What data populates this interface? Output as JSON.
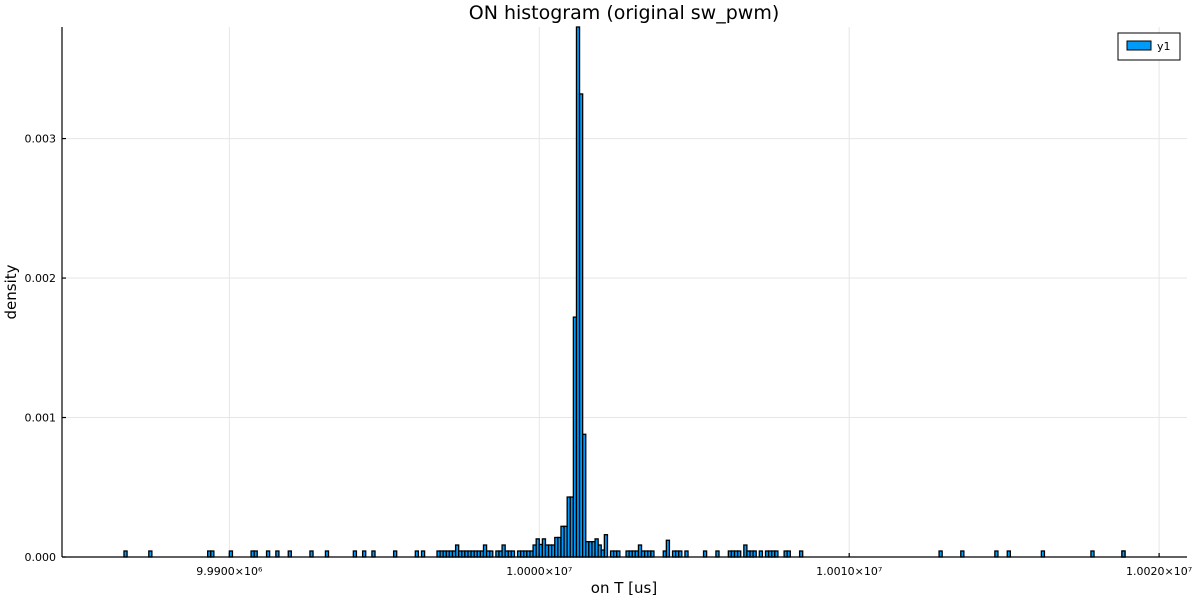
{
  "chart_data": {
    "type": "bar",
    "title": "ON histogram (original sw_pwm)",
    "xlabel": "on T [us]",
    "ylabel": "density",
    "xlim": [
      9984600,
      10020900
    ],
    "ylim": [
      0,
      0.0038
    ],
    "x_ticks": [
      {
        "value": 9990000,
        "label": "9.9900×10⁶"
      },
      {
        "value": 10000000,
        "label": "1.0000×10⁷"
      },
      {
        "value": 10010000,
        "label": "1.0010×10⁷"
      },
      {
        "value": 10020000,
        "label": "1.0020×10⁷"
      }
    ],
    "y_ticks": [
      {
        "value": 0,
        "label": "0.000"
      },
      {
        "value": 0.001,
        "label": "0.001"
      },
      {
        "value": 0.002,
        "label": "0.002"
      },
      {
        "value": 0.003,
        "label": "0.003"
      }
    ],
    "grid": true,
    "legend_position": "top-right",
    "bin_width": 100,
    "series": [
      {
        "name": "y1",
        "color": "#009af9",
        "bins": [
          [
            9986600,
            4.3e-05
          ],
          [
            9987400,
            4.3e-05
          ],
          [
            9989300,
            4.3e-05
          ],
          [
            9989400,
            4.3e-05
          ],
          [
            9990000,
            4.3e-05
          ],
          [
            9990700,
            4.3e-05
          ],
          [
            9990800,
            4.3e-05
          ],
          [
            9991200,
            4.3e-05
          ],
          [
            9991500,
            4.3e-05
          ],
          [
            9991900,
            4.3e-05
          ],
          [
            9992600,
            4.3e-05
          ],
          [
            9993100,
            4.3e-05
          ],
          [
            9994000,
            4.3e-05
          ],
          [
            9994300,
            4.3e-05
          ],
          [
            9994600,
            4.3e-05
          ],
          [
            9995300,
            4.3e-05
          ],
          [
            9996000,
            4.3e-05
          ],
          [
            9996200,
            4.3e-05
          ],
          [
            9996700,
            4.3e-05
          ],
          [
            9996800,
            4.3e-05
          ],
          [
            9996900,
            4.3e-05
          ],
          [
            9997000,
            4.3e-05
          ],
          [
            9997100,
            4.3e-05
          ],
          [
            9997200,
            4.3e-05
          ],
          [
            9997300,
            8.6e-05
          ],
          [
            9997400,
            4.3e-05
          ],
          [
            9997500,
            4.3e-05
          ],
          [
            9997600,
            4.3e-05
          ],
          [
            9997700,
            4.3e-05
          ],
          [
            9997800,
            4.3e-05
          ],
          [
            9997900,
            4.3e-05
          ],
          [
            9998000,
            4.3e-05
          ],
          [
            9998100,
            4.3e-05
          ],
          [
            9998200,
            8.6e-05
          ],
          [
            9998300,
            4.3e-05
          ],
          [
            9998400,
            4.3e-05
          ],
          [
            9998600,
            4.3e-05
          ],
          [
            9998700,
            4.3e-05
          ],
          [
            9998800,
            8.6e-05
          ],
          [
            9998900,
            4.3e-05
          ],
          [
            9999000,
            4.3e-05
          ],
          [
            9999100,
            4.3e-05
          ],
          [
            9999300,
            4.3e-05
          ],
          [
            9999400,
            4.3e-05
          ],
          [
            9999500,
            4.3e-05
          ],
          [
            9999600,
            4.3e-05
          ],
          [
            9999700,
            4.3e-05
          ],
          [
            9999800,
            8.6e-05
          ],
          [
            9999900,
            0.00013
          ],
          [
            10000000,
            9e-05
          ],
          [
            10000100,
            0.00013
          ],
          [
            10000200,
            8.6e-05
          ],
          [
            10000300,
            8.6e-05
          ],
          [
            10000400,
            8.6e-05
          ],
          [
            10000500,
            0.00014
          ],
          [
            10000600,
            0.00014
          ],
          [
            10000700,
            0.00022
          ],
          [
            10000800,
            0.00022
          ],
          [
            10000900,
            0.00043
          ],
          [
            10001000,
            0.00043
          ],
          [
            10001100,
            0.00172
          ],
          [
            10001200,
            0.0038
          ],
          [
            10001300,
            0.00332
          ],
          [
            10001400,
            0.00088
          ],
          [
            10001500,
            0.00011
          ],
          [
            10001600,
            0.00011
          ],
          [
            10001700,
            0.00011
          ],
          [
            10001800,
            0.00013
          ],
          [
            10001900,
            8.6e-05
          ],
          [
            10002000,
            5e-05
          ],
          [
            10002100,
            0.00016
          ],
          [
            10002300,
            4.3e-05
          ],
          [
            10002400,
            4.3e-05
          ],
          [
            10002500,
            4.3e-05
          ],
          [
            10002800,
            4.3e-05
          ],
          [
            10002900,
            4.3e-05
          ],
          [
            10003000,
            4.3e-05
          ],
          [
            10003100,
            4.3e-05
          ],
          [
            10003200,
            8.6e-05
          ],
          [
            10003300,
            4.3e-05
          ],
          [
            10003400,
            4.3e-05
          ],
          [
            10003500,
            4.3e-05
          ],
          [
            10003600,
            4.3e-05
          ],
          [
            10004000,
            4.3e-05
          ],
          [
            10004100,
            0.00012
          ],
          [
            10004300,
            4.3e-05
          ],
          [
            10004400,
            4.3e-05
          ],
          [
            10004500,
            4.3e-05
          ],
          [
            10004700,
            4.3e-05
          ],
          [
            10005300,
            4.3e-05
          ],
          [
            10005700,
            4.3e-05
          ],
          [
            10006100,
            4.3e-05
          ],
          [
            10006200,
            4.3e-05
          ],
          [
            10006300,
            4.3e-05
          ],
          [
            10006400,
            4.3e-05
          ],
          [
            10006600,
            8.6e-05
          ],
          [
            10006700,
            4.3e-05
          ],
          [
            10006800,
            4.3e-05
          ],
          [
            10006900,
            4.3e-05
          ],
          [
            10007100,
            4.3e-05
          ],
          [
            10007300,
            4.3e-05
          ],
          [
            10007400,
            4.3e-05
          ],
          [
            10007500,
            4.3e-05
          ],
          [
            10007600,
            4.3e-05
          ],
          [
            10007900,
            4.3e-05
          ],
          [
            10008000,
            4.3e-05
          ],
          [
            10008400,
            4.3e-05
          ],
          [
            10012900,
            4.3e-05
          ],
          [
            10013600,
            4.3e-05
          ],
          [
            10014700,
            4.3e-05
          ],
          [
            10015100,
            4.3e-05
          ],
          [
            10016200,
            4.3e-05
          ],
          [
            10017800,
            4.3e-05
          ],
          [
            10018800,
            4.3e-05
          ],
          [
            10018800,
            4.3e-05
          ]
        ]
      }
    ]
  }
}
